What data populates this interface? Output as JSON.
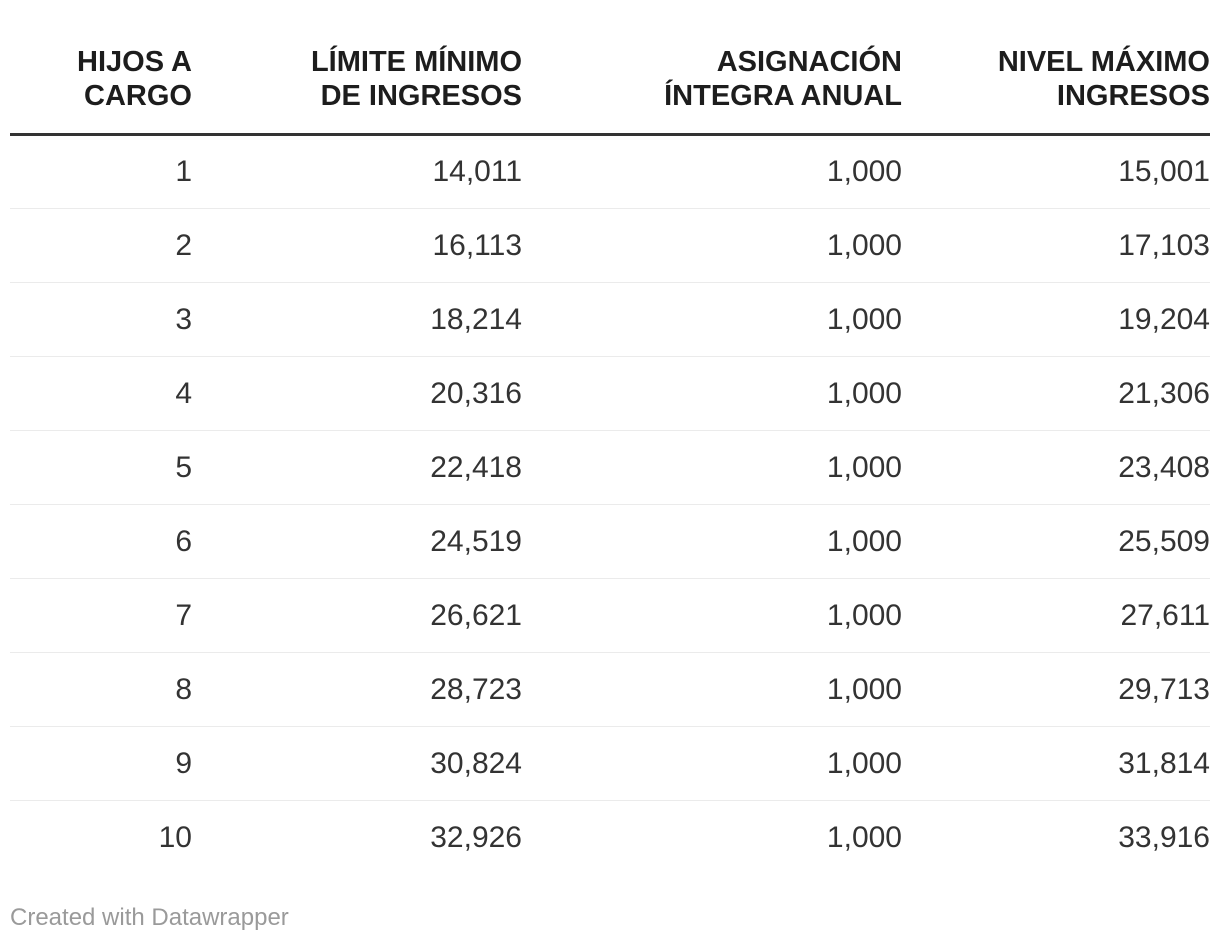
{
  "table": {
    "header": {
      "cells": [
        "HIJOS A\nCARGO",
        "LÍMITE MÍNIMO\nDE INGRESOS",
        "ASIGNACIÓN\nÍNTEGRA ANUAL",
        "NIVEL MÁXIMO\nINGRESOS"
      ]
    },
    "rows": [
      [
        "1",
        "14,011",
        "1,000",
        "15,001"
      ],
      [
        "2",
        "16,113",
        "1,000",
        "17,103"
      ],
      [
        "3",
        "18,214",
        "1,000",
        "19,204"
      ],
      [
        "4",
        "20,316",
        "1,000",
        "21,306"
      ],
      [
        "5",
        "22,418",
        "1,000",
        "23,408"
      ],
      [
        "6",
        "24,519",
        "1,000",
        "25,509"
      ],
      [
        "7",
        "26,621",
        "1,000",
        "27,611"
      ],
      [
        "8",
        "28,723",
        "1,000",
        "29,713"
      ],
      [
        "9",
        "30,824",
        "1,000",
        "31,814"
      ],
      [
        "10",
        "32,926",
        "1,000",
        "33,916"
      ]
    ]
  },
  "footer": {
    "credit": "Created with Datawrapper"
  },
  "colors": {
    "background": "#ffffff",
    "header_text": "#1d1d1d",
    "body_text": "#333333",
    "header_rule": "#333333",
    "row_divider": "#ebebeb",
    "credit_text": "#9a9a9a"
  },
  "chart_data": {
    "type": "table",
    "columns": [
      "HIJOS A CARGO",
      "LÍMITE MÍNIMO DE INGRESOS",
      "ASIGNACIÓN ÍNTEGRA ANUAL",
      "NIVEL MÁXIMO INGRESOS"
    ],
    "rows": [
      [
        1,
        14011,
        1000,
        15001
      ],
      [
        2,
        16113,
        1000,
        17103
      ],
      [
        3,
        18214,
        1000,
        19204
      ],
      [
        4,
        20316,
        1000,
        21306
      ],
      [
        5,
        22418,
        1000,
        23408
      ],
      [
        6,
        24519,
        1000,
        25509
      ],
      [
        7,
        26621,
        1000,
        27611
      ],
      [
        8,
        28723,
        1000,
        29713
      ],
      [
        9,
        30824,
        1000,
        31814
      ],
      [
        10,
        32926,
        1000,
        33916
      ]
    ],
    "title": "",
    "layout_hints": {
      "alignment": "right",
      "header_rows": 1,
      "grid": "horizontal-dividers-only",
      "credit": "Created with Datawrapper"
    }
  }
}
